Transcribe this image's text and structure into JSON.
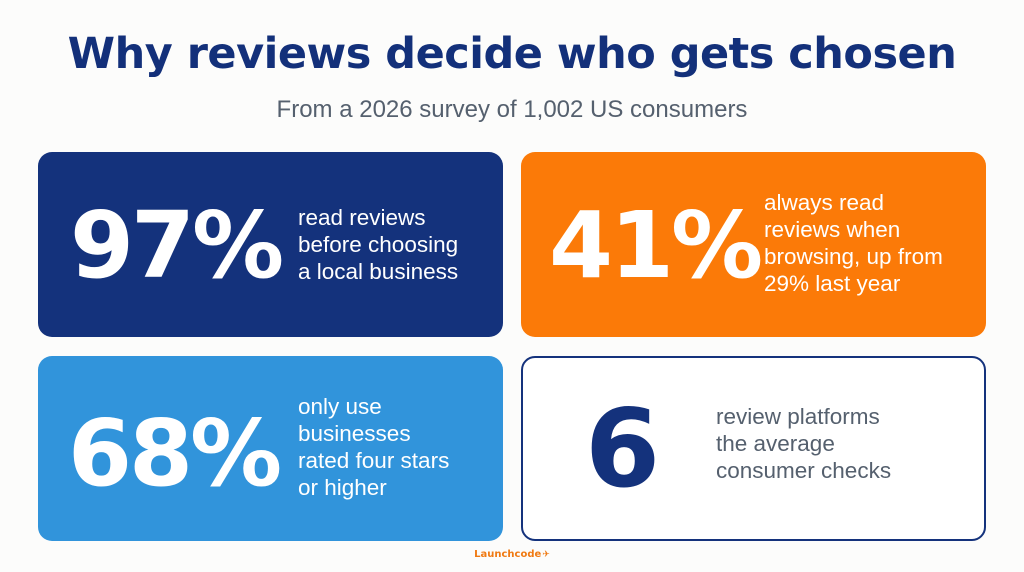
{
  "header": {
    "title": "Why reviews decide who gets chosen",
    "subtitle": "From a 2026 survey of 1,002 US consumers"
  },
  "stats": [
    {
      "value": "97%",
      "text": "read reviews\nbefore choosing\na local business"
    },
    {
      "value": "41%",
      "text": "always read\nreviews when\nbrowsing, up from\n29% last year"
    },
    {
      "value": "68%",
      "text": "only use\nbusinesses\nrated four stars\nor higher"
    },
    {
      "value": "6",
      "text": "review platforms\nthe average\nconsumer checks"
    }
  ],
  "footer": {
    "brand": "Launchcode",
    "brand_icon": "plane-icon"
  },
  "colors": {
    "navy": "#14327c",
    "orange": "#fb7a08",
    "blue": "#3194db",
    "white": "#ffffff"
  }
}
